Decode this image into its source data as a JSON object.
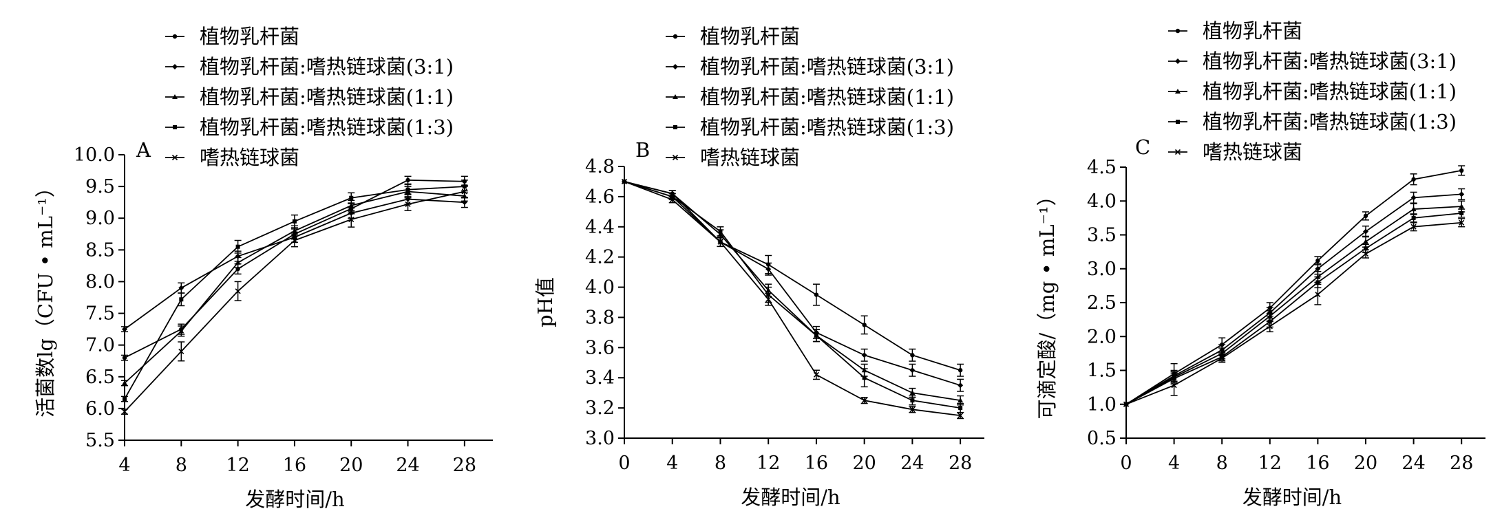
{
  "chart_data": [
    {
      "type": "line",
      "panel_label": "A",
      "xlabel": "发酵时间/h",
      "ylabel": "活菌数lg（CFU • mL⁻¹）",
      "x": [
        4,
        8,
        12,
        16,
        20,
        24,
        28
      ],
      "xticks": [
        "4",
        "8",
        "12",
        "16",
        "20",
        "24",
        "28"
      ],
      "xlim": [
        4,
        30
      ],
      "ylim": [
        5.5,
        10.0
      ],
      "yticks": [
        "5.5",
        "6.0",
        "6.5",
        "7.0",
        "7.5",
        "8.0",
        "8.5",
        "9.0",
        "9.5",
        "10.0"
      ],
      "legend_position": "top",
      "series": [
        {
          "name": "植物乳杆菌",
          "values": [
            6.8,
            7.25,
            8.2,
            8.75,
            9.15,
            9.6,
            9.58
          ],
          "errors": [
            0.04,
            0.08,
            0.08,
            0.08,
            0.08,
            0.06,
            0.08
          ]
        },
        {
          "name": "植物乳杆菌:嗜热链球菌(3:1)",
          "values": [
            7.25,
            7.9,
            8.4,
            8.7,
            9.08,
            9.3,
            9.25
          ],
          "errors": [
            0.04,
            0.08,
            0.08,
            0.08,
            0.08,
            0.08,
            0.08
          ]
        },
        {
          "name": "植物乳杆菌:嗜热链球菌(1:1)",
          "values": [
            6.4,
            7.22,
            8.3,
            8.8,
            9.2,
            9.42,
            9.35
          ],
          "errors": [
            0.04,
            0.08,
            0.08,
            0.08,
            0.08,
            0.08,
            0.08
          ]
        },
        {
          "name": "植物乳杆菌:嗜热链球菌(1:3)",
          "values": [
            6.15,
            7.72,
            8.55,
            8.95,
            9.32,
            9.45,
            9.5
          ],
          "errors": [
            0.04,
            0.1,
            0.1,
            0.1,
            0.08,
            0.08,
            0.1
          ]
        },
        {
          "name": "嗜热链球菌",
          "values": [
            5.95,
            6.9,
            7.85,
            8.65,
            8.98,
            9.22,
            9.42
          ],
          "errors": [
            0.04,
            0.15,
            0.15,
            0.1,
            0.12,
            0.1,
            0.1
          ]
        }
      ]
    },
    {
      "type": "line",
      "panel_label": "B",
      "xlabel": "发酵时间/h",
      "ylabel": "pH值",
      "x": [
        0,
        4,
        8,
        12,
        16,
        20,
        24,
        28
      ],
      "xticks": [
        "0",
        "4",
        "8",
        "12",
        "16",
        "20",
        "24",
        "28"
      ],
      "xlim": [
        0,
        30
      ],
      "ylim": [
        3.0,
        4.8
      ],
      "yticks": [
        "3.0",
        "3.2",
        "3.4",
        "3.6",
        "3.8",
        "4.0",
        "4.2",
        "4.4",
        "4.6",
        "4.8"
      ],
      "legend_position": "top",
      "series": [
        {
          "name": "植物乳杆菌",
          "values": [
            4.7,
            4.62,
            4.3,
            4.15,
            3.95,
            3.75,
            3.55,
            3.45
          ],
          "errors": [
            0,
            0.02,
            0.03,
            0.06,
            0.07,
            0.06,
            0.04,
            0.04
          ]
        },
        {
          "name": "植物乳杆菌:嗜热链球菌(3:1)",
          "values": [
            4.7,
            4.6,
            4.3,
            4.12,
            3.7,
            3.55,
            3.45,
            3.35
          ],
          "errors": [
            0,
            0.02,
            0.03,
            0.04,
            0.04,
            0.04,
            0.04,
            0.04
          ]
        },
        {
          "name": "植物乳杆菌:嗜热链球菌(1:1)",
          "values": [
            4.7,
            4.62,
            4.35,
            3.98,
            3.68,
            3.45,
            3.3,
            3.25
          ],
          "errors": [
            0,
            0.02,
            0.03,
            0.04,
            0.04,
            0.04,
            0.03,
            0.03
          ]
        },
        {
          "name": "植物乳杆菌:嗜热链球菌(1:3)",
          "values": [
            4.7,
            4.6,
            4.37,
            3.95,
            3.68,
            3.4,
            3.25,
            3.2
          ],
          "errors": [
            0,
            0.02,
            0.03,
            0.05,
            0.04,
            0.06,
            0.03,
            0.03
          ]
        },
        {
          "name": "嗜热链球菌",
          "values": [
            4.7,
            4.58,
            4.3,
            3.92,
            3.42,
            3.25,
            3.19,
            3.15
          ],
          "errors": [
            0,
            0.02,
            0.03,
            0.04,
            0.03,
            0.02,
            0.02,
            0.02
          ]
        }
      ]
    },
    {
      "type": "line",
      "panel_label": "C",
      "xlabel": "发酵时间/h",
      "ylabel": "可滴定酸/（mg • mL⁻¹）",
      "x": [
        0,
        4,
        8,
        12,
        16,
        20,
        24,
        28
      ],
      "xticks": [
        "0",
        "4",
        "8",
        "12",
        "16",
        "20",
        "24",
        "28"
      ],
      "xlim": [
        0,
        30
      ],
      "ylim": [
        0.5,
        4.5
      ],
      "yticks": [
        "0.5",
        "1.0",
        "1.5",
        "2.0",
        "2.5",
        "3.0",
        "3.5",
        "4.0",
        "4.5"
      ],
      "legend_position": "top",
      "series": [
        {
          "name": "植物乳杆菌",
          "values": [
            1.0,
            1.45,
            1.88,
            2.42,
            3.12,
            3.78,
            4.32,
            4.45
          ],
          "errors": [
            0,
            0.15,
            0.1,
            0.08,
            0.06,
            0.06,
            0.08,
            0.07
          ]
        },
        {
          "name": "植物乳杆菌:嗜热链球菌(3:1)",
          "values": [
            1.0,
            1.42,
            1.8,
            2.35,
            3.0,
            3.55,
            4.05,
            4.1
          ],
          "errors": [
            0,
            0.08,
            0.08,
            0.08,
            0.08,
            0.08,
            0.08,
            0.08
          ]
        },
        {
          "name": "植物乳杆菌:嗜热链球菌(1:1)",
          "values": [
            1.0,
            1.4,
            1.75,
            2.3,
            2.88,
            3.4,
            3.88,
            3.92
          ],
          "errors": [
            0,
            0.08,
            0.08,
            0.08,
            0.08,
            0.08,
            0.08,
            0.08
          ]
        },
        {
          "name": "植物乳杆菌:嗜热链球菌(1:3)",
          "values": [
            1.0,
            1.38,
            1.7,
            2.22,
            2.8,
            3.3,
            3.75,
            3.82
          ],
          "errors": [
            0,
            0.08,
            0.06,
            0.08,
            0.08,
            0.06,
            0.06,
            0.06
          ]
        },
        {
          "name": "嗜热链球菌",
          "values": [
            1.0,
            1.28,
            1.68,
            2.15,
            2.62,
            3.22,
            3.62,
            3.68
          ],
          "errors": [
            0,
            0.15,
            0.06,
            0.08,
            0.15,
            0.06,
            0.06,
            0.06
          ]
        }
      ]
    }
  ]
}
